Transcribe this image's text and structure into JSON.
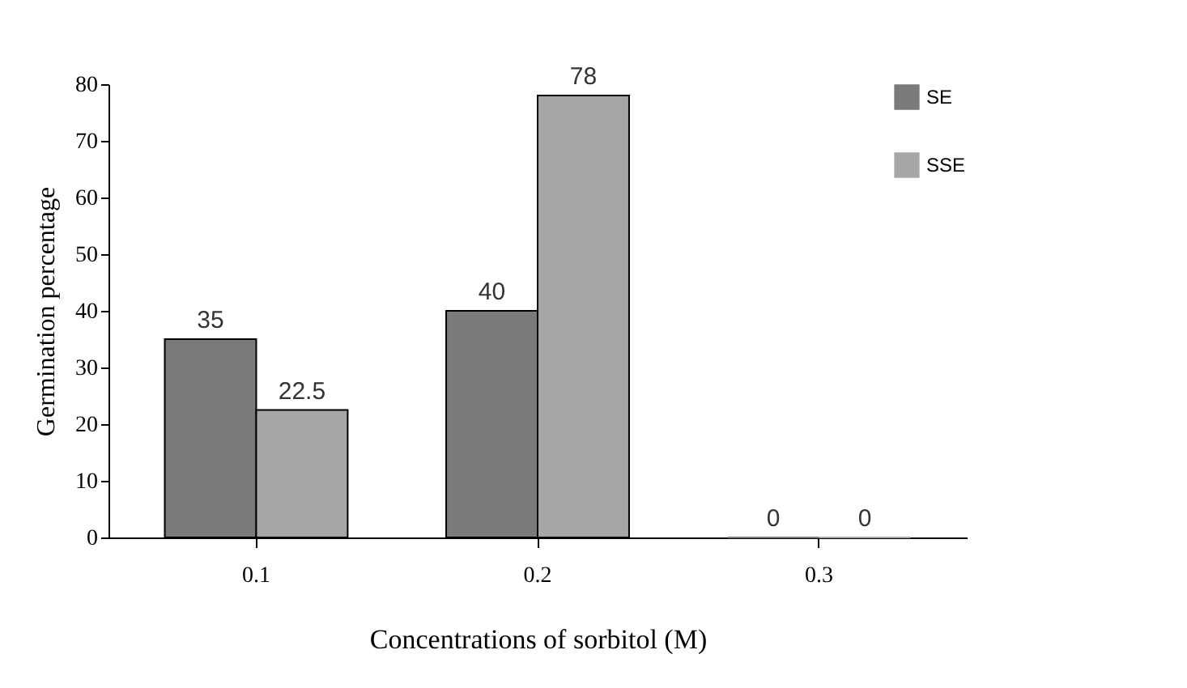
{
  "chart_data": {
    "type": "bar",
    "xlabel": "Concentrations of sorbitol (M)",
    "ylabel": "Germination percentage",
    "categories": [
      "0.1",
      "0.2",
      "0.3"
    ],
    "series": [
      {
        "name": "SE",
        "color": "#7a7a7a",
        "values": [
          35,
          40,
          0
        ]
      },
      {
        "name": "SSE",
        "color": "#a6a6a6",
        "values": [
          22.5,
          78,
          0
        ]
      }
    ],
    "ylim": [
      0,
      80
    ],
    "yticks": [
      0,
      10,
      20,
      30,
      40,
      50,
      60,
      70,
      80
    ],
    "grid": false,
    "legend": "top right",
    "data_labels": true
  }
}
